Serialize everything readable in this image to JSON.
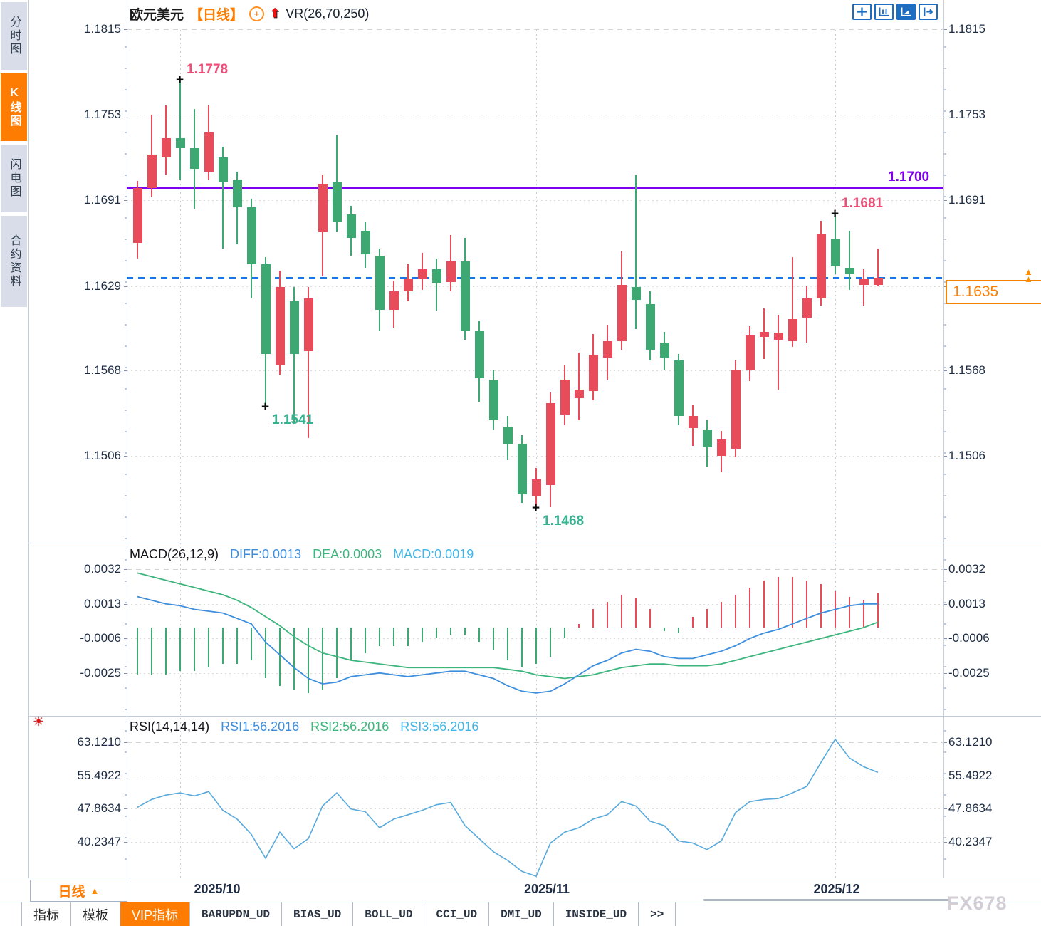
{
  "app": {
    "watermark": "FX678"
  },
  "sidebar": {
    "items": [
      {
        "label": "分时图",
        "active": false
      },
      {
        "label": "K线图",
        "active": true
      },
      {
        "label": "闪电图",
        "active": false
      },
      {
        "label": "合约资料",
        "active": false
      }
    ]
  },
  "header": {
    "symbol": "欧元美元",
    "period_tag": "【日线】",
    "plus_icon": "+",
    "indicator": "VR(26,70,250)"
  },
  "price_badge": {
    "value": "1.1635",
    "arrow": "▲"
  },
  "period_selector": {
    "label": "日线",
    "arrow": "▲"
  },
  "xaxis": {
    "labels": [
      "2025/10",
      "2025/11",
      "2025/12"
    ]
  },
  "bottom_tabs": {
    "items": [
      {
        "label": "指标",
        "active": false,
        "mono": false
      },
      {
        "label": "模板",
        "active": false,
        "mono": false
      },
      {
        "label": "VIP指标",
        "active": true,
        "mono": false
      },
      {
        "label": "BARUPDN_UD",
        "active": false,
        "mono": true
      },
      {
        "label": "BIAS_UD",
        "active": false,
        "mono": true
      },
      {
        "label": "BOLL_UD",
        "active": false,
        "mono": true
      },
      {
        "label": "CCI_UD",
        "active": false,
        "mono": true
      },
      {
        "label": "DMI_UD",
        "active": false,
        "mono": true
      },
      {
        "label": "INSIDE_UD",
        "active": false,
        "mono": true
      },
      {
        "label": ">>",
        "active": false,
        "mono": true
      }
    ]
  },
  "chart_data": {
    "type": "candlestick",
    "title": "欧元美元 日线 (EUR/USD daily)",
    "colors": {
      "up": "#e84b5a",
      "down": "#3ea873",
      "macd_diff": "#3e8ede",
      "macd_dea": "#3cb57c",
      "rsi_line": "#58aadc",
      "level_purple": "#7f00f0",
      "current_dashed": "#1777e6",
      "anno_high": "#ee4f78",
      "anno_low": "#35b28f"
    },
    "price_axis": {
      "labels": [
        "1.1815",
        "1.1753",
        "1.1691",
        "1.1629",
        "1.1568",
        "1.1506"
      ],
      "top": 1.1815,
      "bottom": 1.1506
    },
    "x_axis": {
      "labels": [
        "2025/10",
        "2025/11",
        "2025/12"
      ],
      "gridline_candles": [
        3,
        28,
        49
      ]
    },
    "levels": {
      "resistance": 1.17,
      "current_price": 1.1635
    },
    "annotations": [
      {
        "text": "1.1778",
        "candle": 3,
        "price": 1.1778,
        "kind": "high"
      },
      {
        "text": "1.1541",
        "candle": 9,
        "price": 1.1541,
        "kind": "low"
      },
      {
        "text": "1.1468",
        "candle": 28,
        "price": 1.1468,
        "kind": "low"
      },
      {
        "text": "1.1681",
        "candle": 49,
        "price": 1.1681,
        "kind": "high"
      },
      {
        "text": "1.1700",
        "kind": "level",
        "price": 1.17
      }
    ],
    "candles_ohlc": [
      [
        1.166,
        1.1705,
        1.1649,
        1.17
      ],
      [
        1.17,
        1.1753,
        1.1694,
        1.1724
      ],
      [
        1.1722,
        1.176,
        1.171,
        1.1736
      ],
      [
        1.1736,
        1.1778,
        1.1706,
        1.1729
      ],
      [
        1.1729,
        1.1757,
        1.1685,
        1.1714
      ],
      [
        1.1712,
        1.176,
        1.1706,
        1.174
      ],
      [
        1.1722,
        1.173,
        1.1656,
        1.1704
      ],
      [
        1.1706,
        1.1712,
        1.1659,
        1.1686
      ],
      [
        1.1686,
        1.1692,
        1.162,
        1.1645
      ],
      [
        1.1645,
        1.165,
        1.1541,
        1.158
      ],
      [
        1.1572,
        1.164,
        1.1565,
        1.1628
      ],
      [
        1.1618,
        1.1628,
        1.1529,
        1.158
      ],
      [
        1.1582,
        1.1628,
        1.1519,
        1.162
      ],
      [
        1.1668,
        1.171,
        1.1636,
        1.1703
      ],
      [
        1.1704,
        1.1738,
        1.1668,
        1.1675
      ],
      [
        1.1681,
        1.1687,
        1.1651,
        1.1664
      ],
      [
        1.1669,
        1.1675,
        1.1642,
        1.1652
      ],
      [
        1.1651,
        1.1656,
        1.1597,
        1.1612
      ],
      [
        1.1612,
        1.1633,
        1.1599,
        1.1625
      ],
      [
        1.1625,
        1.1645,
        1.1618,
        1.1634
      ],
      [
        1.1634,
        1.1653,
        1.1626,
        1.1641
      ],
      [
        1.1641,
        1.1649,
        1.1611,
        1.1631
      ],
      [
        1.1632,
        1.1666,
        1.1625,
        1.1647
      ],
      [
        1.1647,
        1.1664,
        1.159,
        1.1597
      ],
      [
        1.1597,
        1.1604,
        1.1545,
        1.1562
      ],
      [
        1.1561,
        1.1568,
        1.1525,
        1.1532
      ],
      [
        1.1527,
        1.1535,
        1.1503,
        1.1514
      ],
      [
        1.1515,
        1.1521,
        1.1472,
        1.1478
      ],
      [
        1.1477,
        1.1497,
        1.1468,
        1.1489
      ],
      [
        1.1485,
        1.1552,
        1.1469,
        1.1544
      ],
      [
        1.1536,
        1.1572,
        1.1528,
        1.1561
      ],
      [
        1.1548,
        1.1581,
        1.1532,
        1.1554
      ],
      [
        1.1553,
        1.1594,
        1.1546,
        1.1579
      ],
      [
        1.1577,
        1.1601,
        1.1561,
        1.1589
      ],
      [
        1.1589,
        1.1654,
        1.1583,
        1.163
      ],
      [
        1.1628,
        1.1709,
        1.1598,
        1.1619
      ],
      [
        1.1616,
        1.1625,
        1.1575,
        1.1583
      ],
      [
        1.1588,
        1.1596,
        1.1568,
        1.1577
      ],
      [
        1.1575,
        1.158,
        1.1528,
        1.1535
      ],
      [
        1.1526,
        1.1543,
        1.1513,
        1.1535
      ],
      [
        1.1525,
        1.1532,
        1.1498,
        1.1512
      ],
      [
        1.1506,
        1.1524,
        1.1494,
        1.1518
      ],
      [
        1.1511,
        1.1575,
        1.1505,
        1.1568
      ],
      [
        1.1568,
        1.16,
        1.156,
        1.1593
      ],
      [
        1.1592,
        1.1613,
        1.1576,
        1.1596
      ],
      [
        1.159,
        1.1608,
        1.1554,
        1.1595
      ],
      [
        1.1589,
        1.165,
        1.1585,
        1.1605
      ],
      [
        1.1606,
        1.1629,
        1.1588,
        1.162
      ],
      [
        1.162,
        1.1676,
        1.1615,
        1.1667
      ],
      [
        1.1663,
        1.1681,
        1.1638,
        1.1643
      ],
      [
        1.1642,
        1.1669,
        1.1626,
        1.1638
      ],
      [
        1.163,
        1.1641,
        1.1615,
        1.1634
      ],
      [
        1.163,
        1.1656,
        1.1629,
        1.1635
      ]
    ],
    "macd": {
      "title": "MACD(26,12,9)",
      "diff_label": "DIFF:0.0013",
      "dea_label": "DEA:0.0003",
      "macd_label": "MACD:0.0019",
      "axis_labels": [
        "0.0032",
        "0.0013",
        "-0.0006",
        "-0.0025"
      ],
      "value_scale": 0.0001,
      "diff": [
        17,
        15,
        13,
        12,
        10,
        9,
        8,
        5,
        2,
        -8,
        -15,
        -22,
        -28,
        -31,
        -30,
        -27,
        -26,
        -25,
        -26,
        -27,
        -26,
        -25,
        -24,
        -24,
        -26,
        -28,
        -32,
        -35,
        -36,
        -35,
        -31,
        -26,
        -21,
        -18,
        -14,
        -12,
        -13,
        -16,
        -17,
        -17,
        -15,
        -13,
        -10,
        -6,
        -3,
        -1,
        2,
        5,
        8,
        10,
        12,
        13,
        13
      ],
      "dea": [
        30,
        28,
        26,
        24,
        22,
        20,
        18,
        15,
        11,
        6,
        1,
        -5,
        -10,
        -14,
        -16,
        -18,
        -19,
        -20,
        -21,
        -22,
        -22,
        -22,
        -22,
        -22,
        -22,
        -22,
        -23,
        -24,
        -26,
        -27,
        -28,
        -27,
        -26,
        -24,
        -22,
        -21,
        -20,
        -20,
        -21,
        -21,
        -21,
        -20,
        -18,
        -16,
        -14,
        -12,
        -10,
        -8,
        -6,
        -4,
        -2,
        0,
        3
      ],
      "hist": [
        -26,
        -26,
        -26,
        -24,
        -24,
        -22,
        -20,
        -20,
        -18,
        -28,
        -32,
        -34,
        -36,
        -34,
        -28,
        -18,
        -14,
        -10,
        -10,
        -10,
        -8,
        -6,
        -4,
        -4,
        -8,
        -12,
        -18,
        -22,
        -20,
        -16,
        -6,
        2,
        10,
        14,
        18,
        16,
        10,
        -2,
        -3,
        6,
        10,
        14,
        18,
        22,
        26,
        28,
        28,
        26,
        24,
        20,
        17,
        15,
        19
      ]
    },
    "rsi": {
      "title": "RSI(14,14,14)",
      "rsi1_label": "RSI1:56.2016",
      "rsi2_label": "RSI2:56.2016",
      "rsi3_label": "RSI3:56.2016",
      "axis_labels": [
        "63.1210",
        "55.4922",
        "47.8634",
        "40.2347"
      ],
      "values": [
        48.2,
        50.0,
        51.0,
        51.5,
        50.8,
        51.8,
        47.5,
        45.5,
        42.0,
        36.5,
        42.5,
        38.7,
        41.0,
        48.5,
        51.5,
        47.8,
        47.2,
        43.5,
        45.5,
        46.5,
        47.5,
        48.8,
        49.3,
        44.0,
        41.0,
        38.0,
        36.0,
        33.5,
        32.4,
        40.0,
        42.5,
        43.5,
        45.5,
        46.5,
        49.5,
        48.5,
        45.0,
        44.0,
        40.5,
        40.0,
        38.5,
        40.5,
        47.0,
        49.5,
        50.0,
        50.2,
        51.5,
        53.0,
        58.5,
        63.8,
        59.5,
        57.5,
        56.2
      ]
    }
  }
}
